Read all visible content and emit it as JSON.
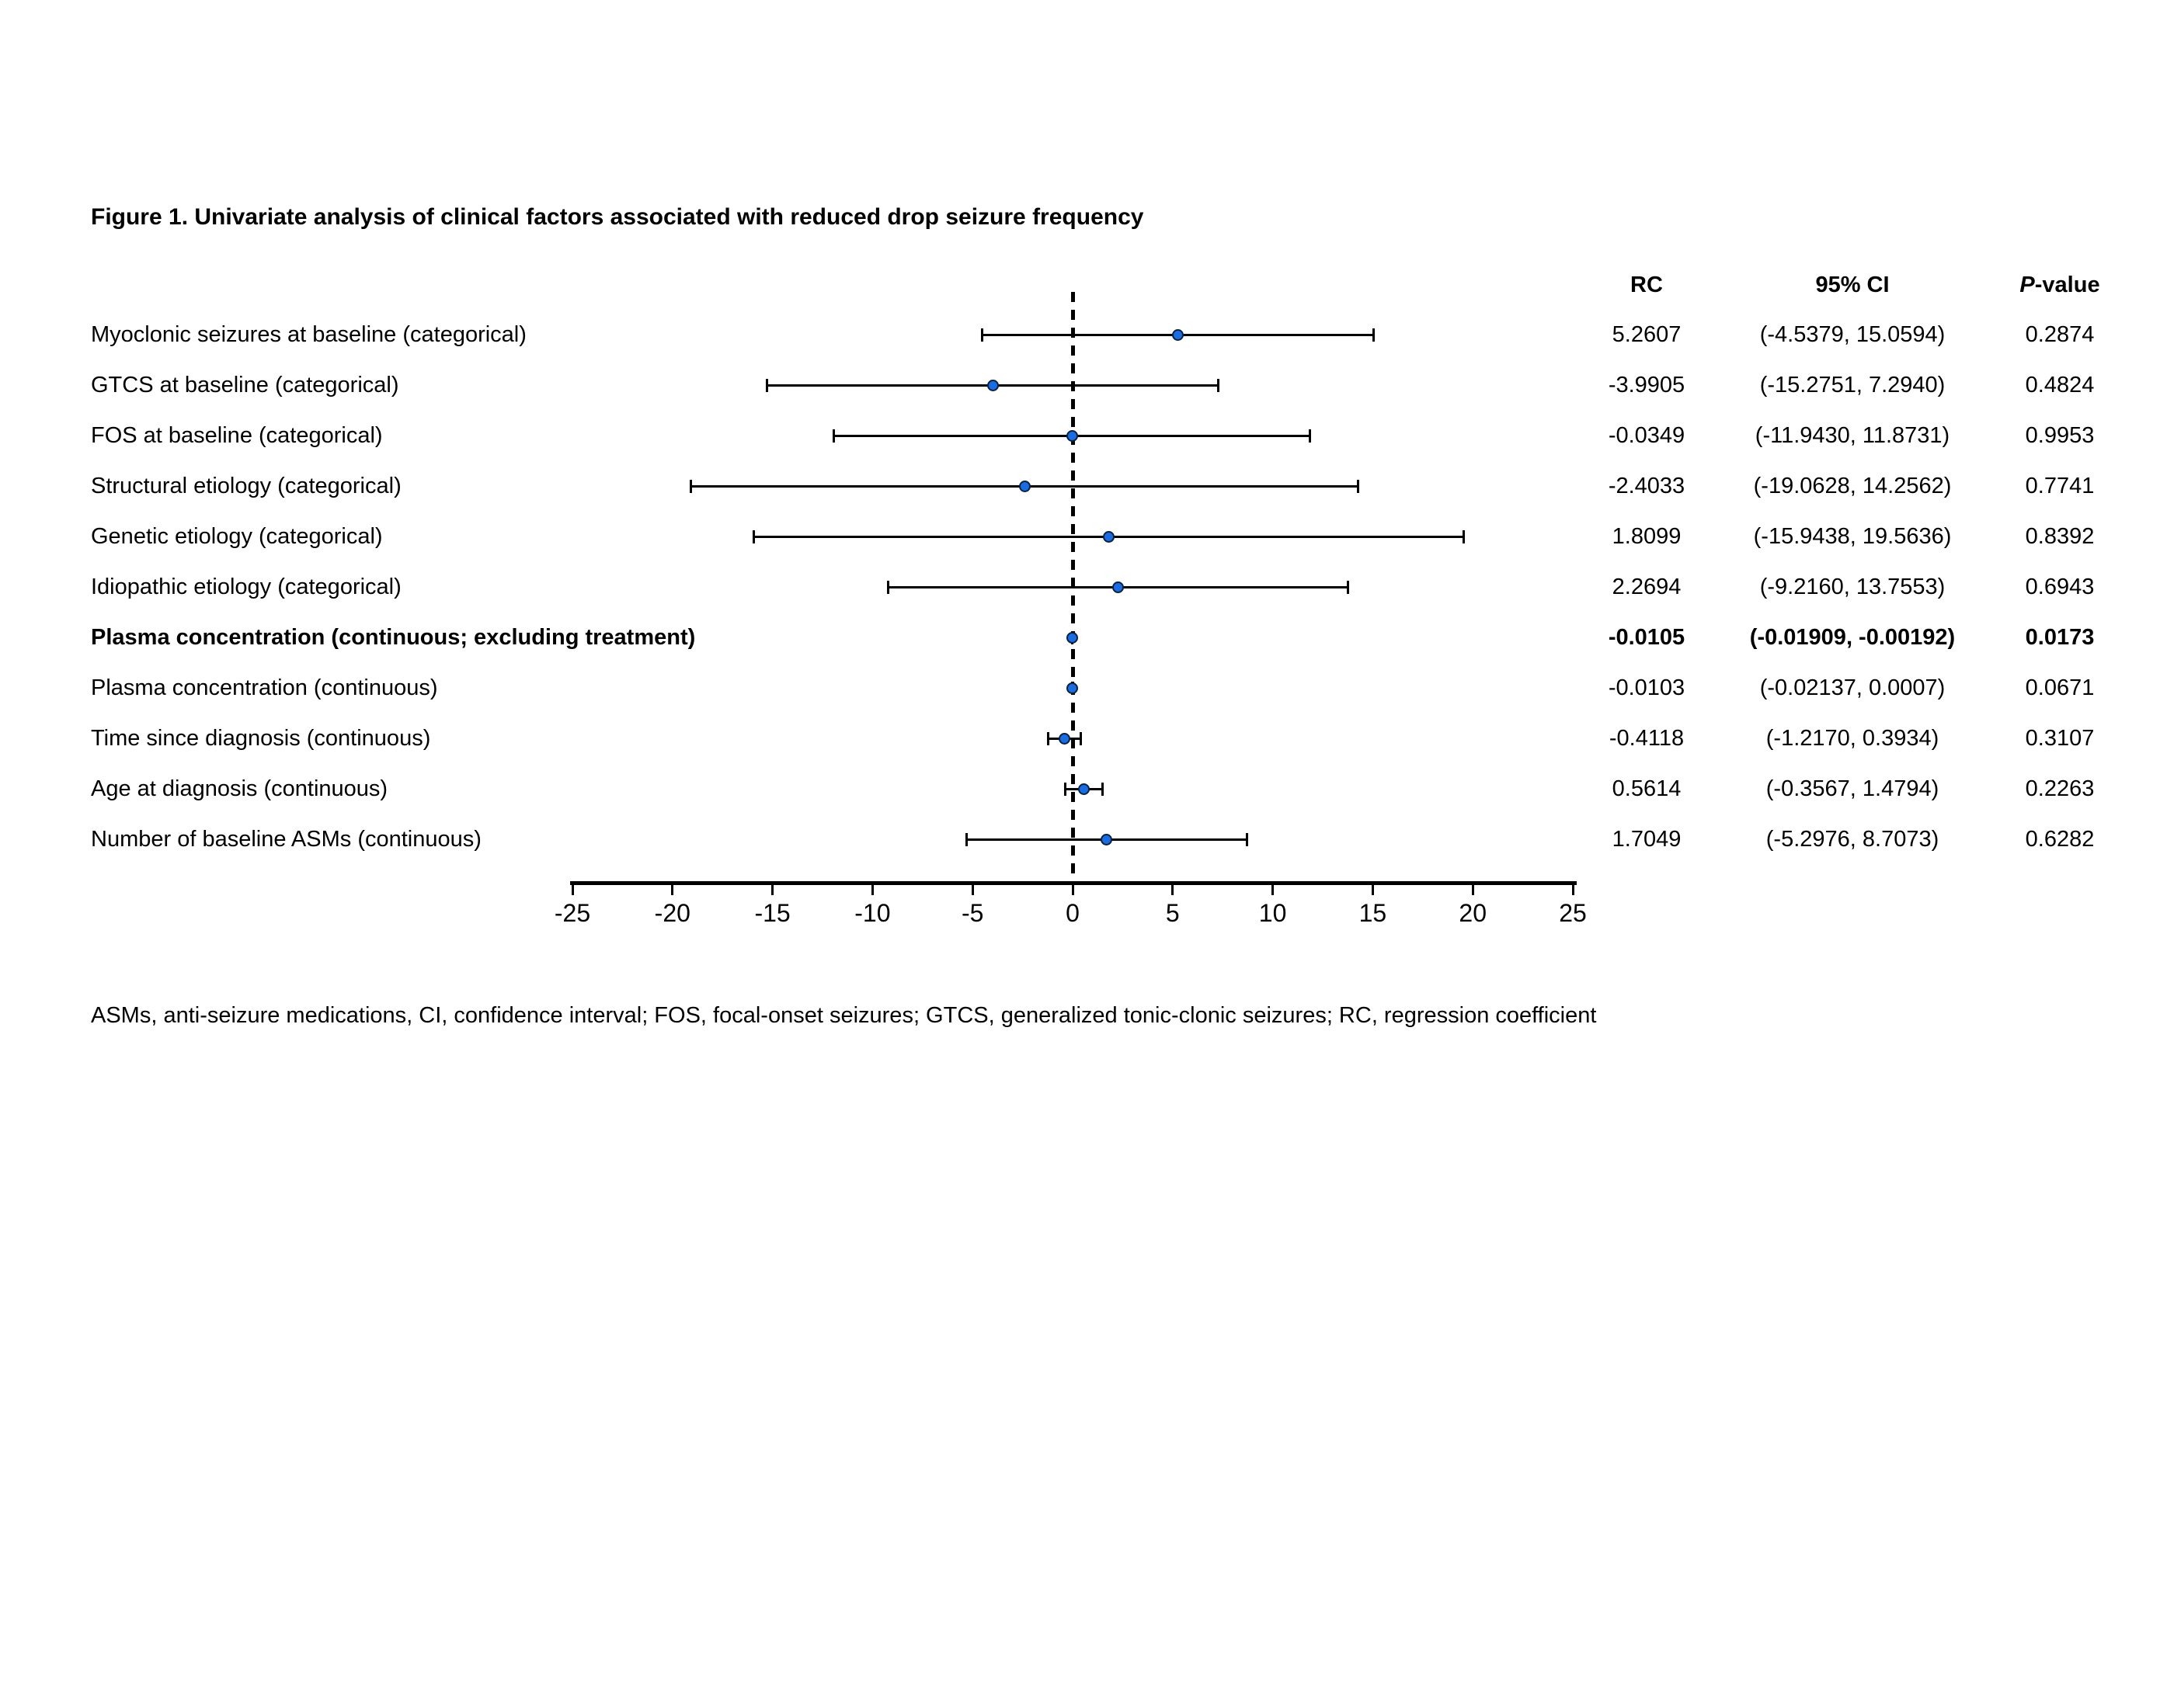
{
  "title": "Figure 1. Univariate analysis of clinical factors associated with reduced drop seizure frequency",
  "columns": {
    "rc": "RC",
    "ci": "95% CI",
    "p_italic": "P",
    "p_rest": "-value"
  },
  "footnote": "ASMs, anti-seizure medications, CI, confidence interval; FOS, focal-onset seizures; GTCS, generalized tonic-clonic seizures; RC, regression coefficient",
  "colors": {
    "point_fill": "#1a6ce0",
    "point_stroke": "#0a2240",
    "line": "#000000",
    "background": "#ffffff"
  },
  "chart_data": {
    "type": "forest",
    "xlim": [
      -25,
      25
    ],
    "xticks": [
      -25,
      -20,
      -15,
      -10,
      -5,
      0,
      5,
      10,
      15,
      20,
      25
    ],
    "zero_line": 0,
    "zero_line_style": "dashed",
    "grid": false,
    "rows": [
      {
        "label": "Myoclonic seizures at baseline (categorical)",
        "rc": "5.2607",
        "ci": "(-4.5379, 15.0594)",
        "p": "0.2874",
        "rc_v": 5.2607,
        "lo": -4.5379,
        "hi": 15.0594,
        "bold": false
      },
      {
        "label": "GTCS at baseline (categorical)",
        "rc": "-3.9905",
        "ci": "(-15.2751, 7.2940)",
        "p": "0.4824",
        "rc_v": -3.9905,
        "lo": -15.2751,
        "hi": 7.294,
        "bold": false
      },
      {
        "label": "FOS at baseline (categorical)",
        "rc": "-0.0349",
        "ci": "(-11.9430, 11.8731)",
        "p": "0.9953",
        "rc_v": -0.0349,
        "lo": -11.943,
        "hi": 11.8731,
        "bold": false
      },
      {
        "label": "Structural etiology (categorical)",
        "rc": "-2.4033",
        "ci": "(-19.0628, 14.2562)",
        "p": "0.7741",
        "rc_v": -2.4033,
        "lo": -19.0628,
        "hi": 14.2562,
        "bold": false
      },
      {
        "label": "Genetic etiology (categorical)",
        "rc": "1.8099",
        "ci": "(-15.9438, 19.5636)",
        "p": "0.8392",
        "rc_v": 1.8099,
        "lo": -15.9438,
        "hi": 19.5636,
        "bold": false
      },
      {
        "label": "Idiopathic etiology (categorical)",
        "rc": "2.2694",
        "ci": "(-9.2160, 13.7553)",
        "p": "0.6943",
        "rc_v": 2.2694,
        "lo": -9.216,
        "hi": 13.7553,
        "bold": false
      },
      {
        "label": "Plasma concentration (continuous; excluding treatment)",
        "rc": "-0.0105",
        "ci": "(-0.01909, -0.00192)",
        "p": "0.0173",
        "rc_v": -0.0105,
        "lo": -0.01909,
        "hi": -0.00192,
        "bold": true
      },
      {
        "label": "Plasma concentration (continuous)",
        "rc": "-0.0103",
        "ci": "(-0.02137, 0.0007)",
        "p": "0.0671",
        "rc_v": -0.0103,
        "lo": -0.02137,
        "hi": 0.0007,
        "bold": false
      },
      {
        "label": "Time since diagnosis (continuous)",
        "rc": "-0.4118",
        "ci": "(-1.2170, 0.3934)",
        "p": "0.3107",
        "rc_v": -0.4118,
        "lo": -1.217,
        "hi": 0.3934,
        "bold": false
      },
      {
        "label": "Age at diagnosis (continuous)",
        "rc": "0.5614",
        "ci": "(-0.3567, 1.4794)",
        "p": "0.2263",
        "rc_v": 0.5614,
        "lo": -0.3567,
        "hi": 1.4794,
        "bold": false
      },
      {
        "label": "Number of baseline ASMs (continuous)",
        "rc": "1.7049",
        "ci": "(-5.2976, 8.7073)",
        "p": "0.6282",
        "rc_v": 1.7049,
        "lo": -5.2976,
        "hi": 8.7073,
        "bold": false
      }
    ]
  }
}
